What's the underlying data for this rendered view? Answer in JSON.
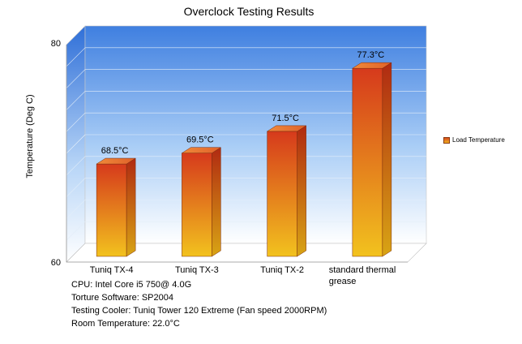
{
  "chart_data": {
    "type": "bar",
    "title": "Overclock Testing Results",
    "ylabel": "Temperature (Deg C)",
    "xlabel": "",
    "ylim": [
      60,
      80
    ],
    "y_ticks": [
      "60",
      "80"
    ],
    "categories": [
      "Tuniq TX-4",
      "Tuniq TX-3",
      "Tuniq TX-2",
      "standard thermal grease"
    ],
    "series": [
      {
        "name": "Load Temperature",
        "values": [
          68.5,
          69.5,
          71.5,
          77.3
        ],
        "labels": [
          "68.5°C",
          "69.5°C",
          "71.5°C",
          "77.3°C"
        ]
      }
    ],
    "legend_position": "right",
    "grid": true,
    "colors": {
      "bar_top": "#d63a1c",
      "bar_bottom": "#f2c21e",
      "wall_top": "#3f7fe0",
      "wall_bottom": "#ffffff"
    }
  },
  "notes": [
    "CPU: Intel Core i5 750@ 4.0G",
    "Torture Software: SP2004",
    "Testing Cooler: Tuniq Tower 120 Extreme (Fan speed 2000RPM)",
    "Room Temperature: 22.0°C"
  ]
}
